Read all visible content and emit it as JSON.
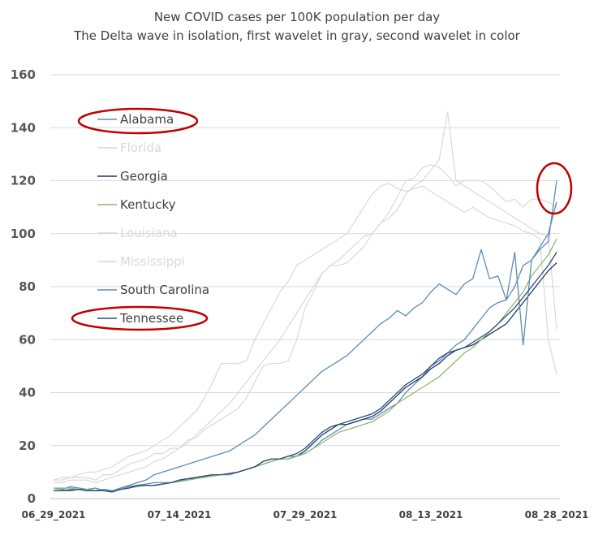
{
  "chart_data": {
    "type": "line",
    "title": "New COVID cases per 100K population per day",
    "subtitle": "The Delta wave in isolation, first wavelet in gray, second wavelet in color",
    "xlabel": "",
    "ylabel": "",
    "ylim": [
      0,
      160
    ],
    "yticks": [
      "0",
      "20",
      "40",
      "60",
      "80",
      "100",
      "120",
      "140",
      "160"
    ],
    "x_tick_labels": [
      "06_29_2021",
      "07_14_2021",
      "07_29_2021",
      "08_13_2021",
      "08_28_2021"
    ],
    "grid": "horizontal",
    "legend_position": "top-left",
    "x_points": 61,
    "annotations": [
      "red ellipse around Alabama legend entry",
      "red ellipse around Tennessee legend entry",
      "red ellipse around end of Alabama line near 120"
    ],
    "series": [
      {
        "name": "Alabama",
        "color": "#5b8db8",
        "gray": false,
        "values": [
          4,
          3.5,
          4.5,
          4,
          3.5,
          4,
          3,
          2.5,
          4,
          4.5,
          5,
          5.5,
          6,
          6,
          6,
          7,
          7.5,
          8,
          8.5,
          9,
          9,
          9,
          10,
          11,
          12,
          13,
          14,
          15,
          16,
          16,
          17,
          19,
          22,
          24,
          26,
          28,
          29,
          30,
          30,
          32,
          34,
          36,
          40,
          43,
          46,
          50,
          52,
          55,
          58,
          60,
          64,
          68,
          72,
          74,
          75,
          80,
          88,
          90,
          95,
          100,
          112
        ]
      },
      {
        "name": "Florida",
        "color": "#d9d9d9",
        "gray": true,
        "values": [
          7,
          7,
          8,
          8,
          8,
          7,
          9,
          9,
          11,
          13,
          14,
          15,
          17,
          17,
          19,
          19,
          22,
          23,
          26,
          28,
          30,
          32,
          34,
          38,
          44,
          50,
          51,
          51,
          52,
          60,
          72,
          78,
          85,
          88,
          90,
          93,
          96,
          99,
          100,
          104,
          108,
          114,
          120,
          121,
          125,
          126,
          125,
          122,
          118,
          120,
          120,
          120,
          118,
          115,
          112,
          113,
          110,
          113,
          113,
          112,
          110
        ]
      },
      {
        "name": "Georgia",
        "color": "#1f3864",
        "gray": false,
        "values": [
          3,
          3,
          3.5,
          3.5,
          3,
          3,
          3,
          2.5,
          3.5,
          4,
          5,
          5,
          5,
          5.5,
          6,
          6.5,
          7,
          8,
          8.5,
          9,
          9,
          9.5,
          10,
          11,
          12,
          14,
          15,
          15,
          15,
          16,
          18,
          21,
          24,
          26,
          28,
          28,
          29,
          30,
          31,
          33,
          36,
          39,
          42,
          44,
          46,
          49,
          51,
          54,
          56,
          57,
          58,
          60,
          62,
          64,
          66,
          70,
          74,
          78,
          82,
          86,
          89
        ]
      },
      {
        "name": "Kentucky",
        "color": "#8db96e",
        "gray": false,
        "values": [
          4,
          4,
          4,
          3.5,
          3.5,
          3,
          3,
          3,
          3.5,
          4,
          4.5,
          5,
          5,
          5.5,
          6,
          6.5,
          7,
          7.5,
          8,
          8.5,
          9,
          9.5,
          10,
          11,
          12,
          13,
          14,
          15,
          15,
          16,
          17,
          19,
          21,
          23,
          25,
          26,
          27,
          28,
          29,
          31,
          33,
          36,
          38,
          40,
          42,
          44,
          46,
          49,
          52,
          55,
          57,
          60,
          63,
          66,
          70,
          74,
          78,
          84,
          88,
          92,
          98
        ]
      },
      {
        "name": "Louisiana",
        "color": "#d9d9d9",
        "gray": true,
        "values": [
          7,
          8,
          8,
          9,
          10,
          10,
          11,
          12,
          14,
          16,
          17,
          18,
          20,
          22,
          24,
          27,
          30,
          33,
          38,
          44,
          51,
          51,
          51,
          52,
          60,
          66,
          72,
          78,
          82,
          88,
          90,
          92,
          94,
          96,
          98,
          100,
          105,
          110,
          115,
          118,
          119,
          117,
          116,
          117,
          118,
          116,
          114,
          112,
          110,
          108,
          110,
          108,
          106,
          105,
          104,
          103,
          101,
          100,
          98,
          60,
          47
        ]
      },
      {
        "name": "Mississippi",
        "color": "#d9d9d9",
        "gray": true,
        "values": [
          6,
          6,
          7,
          7,
          7,
          6,
          7,
          8,
          9,
          10,
          11,
          12,
          14,
          15,
          17,
          19,
          21,
          24,
          27,
          30,
          33,
          36,
          40,
          44,
          48,
          52,
          56,
          60,
          65,
          70,
          75,
          80,
          85,
          88,
          88,
          89,
          92,
          95,
          100,
          104,
          106,
          109,
          115,
          118,
          120,
          124,
          128,
          146,
          120,
          118,
          116,
          114,
          112,
          110,
          108,
          106,
          104,
          102,
          100,
          99,
          64
        ]
      },
      {
        "name": "South Carolina",
        "color": "#5b8db8",
        "gray": false,
        "values": [
          3,
          3,
          3.5,
          3.5,
          3,
          3,
          3.5,
          3,
          4,
          5,
          6,
          7,
          9,
          10,
          11,
          12,
          13,
          14,
          15,
          16,
          17,
          18,
          20,
          22,
          24,
          27,
          30,
          33,
          36,
          39,
          42,
          45,
          48,
          50,
          52,
          54,
          57,
          60,
          63,
          66,
          68,
          71,
          69,
          72,
          74,
          78,
          81,
          79,
          77,
          81,
          83,
          94,
          83,
          84,
          75,
          93,
          58,
          90,
          94,
          97,
          120
        ]
      },
      {
        "name": "Tennessee",
        "color": "#2e4a7a",
        "gray": false,
        "values": [
          3,
          3,
          3,
          3.5,
          3,
          3,
          3,
          2.5,
          3.5,
          4,
          5,
          5,
          5,
          5.5,
          6,
          7,
          7.5,
          8,
          8.5,
          9,
          9,
          9.5,
          10,
          11,
          12,
          14,
          15,
          15,
          16,
          17,
          19,
          22,
          25,
          27,
          28,
          29,
          30,
          31,
          32,
          34,
          37,
          40,
          43,
          45,
          47,
          50,
          53,
          55,
          56,
          57,
          59,
          61,
          63,
          66,
          69,
          72,
          76,
          80,
          84,
          88,
          93
        ]
      }
    ]
  }
}
